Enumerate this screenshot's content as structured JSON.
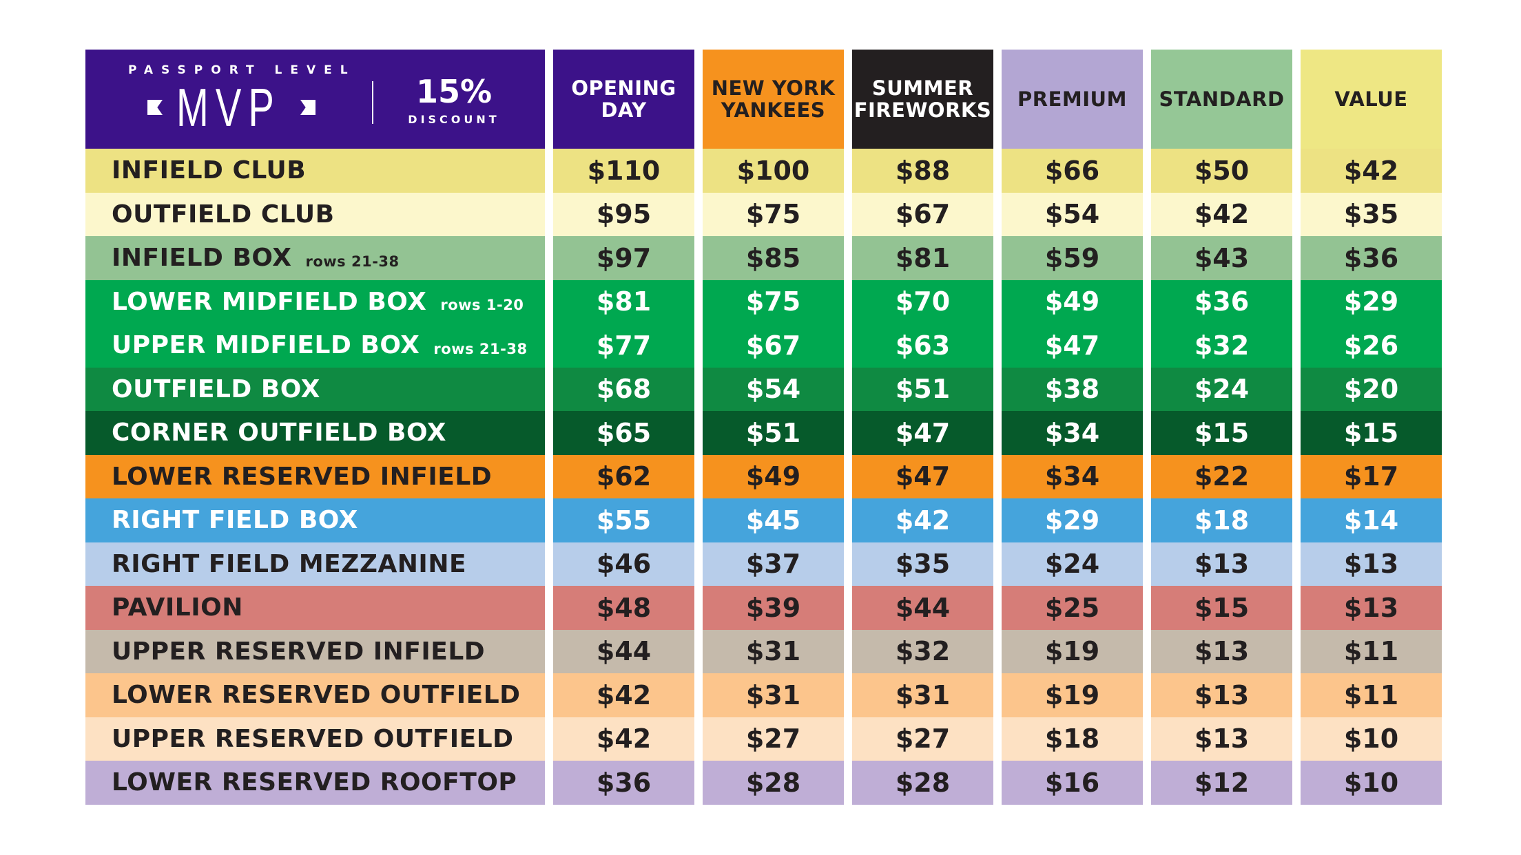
{
  "header": {
    "kicker": "PASSPORT LEVEL",
    "title": "MVP",
    "discount_pct": "15%",
    "discount_label": "DISCOUNT"
  },
  "columns": [
    {
      "label": "OPENING\nDAY",
      "bg": "#3c1289",
      "fg": "#ffffff"
    },
    {
      "label": "NEW YORK\nYANKEES",
      "bg": "#f6921e",
      "fg": "#231f20"
    },
    {
      "label": "SUMMER\nFIREWORKS",
      "bg": "#231f20",
      "fg": "#ffffff"
    },
    {
      "label": "PREMIUM",
      "bg": "#b3a6d3",
      "fg": "#231f20"
    },
    {
      "label": "STANDARD",
      "bg": "#95c796",
      "fg": "#231f20"
    },
    {
      "label": "VALUE",
      "bg": "#eee784",
      "fg": "#231f20"
    }
  ],
  "rows": [
    {
      "name": "INFIELD CLUB",
      "note": "",
      "bg": "#ede283",
      "fg": "#231f20",
      "prices": [
        "$110",
        "$100",
        "$88",
        "$66",
        "$50",
        "$42"
      ]
    },
    {
      "name": "OUTFIELD CLUB",
      "note": "",
      "bg": "#fcf7cc",
      "fg": "#231f20",
      "prices": [
        "$95",
        "$75",
        "$67",
        "$54",
        "$42",
        "$35"
      ]
    },
    {
      "name": "INFIELD BOX",
      "note": "rows 21-38",
      "bg": "#93c393",
      "fg": "#231f20",
      "prices": [
        "$97",
        "$85",
        "$81",
        "$59",
        "$43",
        "$36"
      ]
    },
    {
      "name": "LOWER MIDFIELD BOX",
      "note": "rows 1-20",
      "bg": "#00a850",
      "fg": "#ffffff",
      "prices": [
        "$81",
        "$75",
        "$70",
        "$49",
        "$36",
        "$29"
      ]
    },
    {
      "name": "UPPER MIDFIELD BOX",
      "note": "rows 21-38",
      "bg": "#00a850",
      "fg": "#ffffff",
      "prices": [
        "$77",
        "$67",
        "$63",
        "$47",
        "$32",
        "$26"
      ]
    },
    {
      "name": "OUTFIELD BOX",
      "note": "",
      "bg": "#0f8a42",
      "fg": "#ffffff",
      "prices": [
        "$68",
        "$54",
        "$51",
        "$38",
        "$24",
        "$20"
      ]
    },
    {
      "name": "CORNER OUTFIELD BOX",
      "note": "",
      "bg": "#065a2b",
      "fg": "#ffffff",
      "prices": [
        "$65",
        "$51",
        "$47",
        "$34",
        "$15",
        "$15"
      ]
    },
    {
      "name": "LOWER RESERVED INFIELD",
      "note": "",
      "bg": "#f6921e",
      "fg": "#231f20",
      "prices": [
        "$62",
        "$49",
        "$47",
        "$34",
        "$22",
        "$17"
      ]
    },
    {
      "name": "RIGHT FIELD BOX",
      "note": "",
      "bg": "#45a4dc",
      "fg": "#ffffff",
      "prices": [
        "$55",
        "$45",
        "$42",
        "$29",
        "$18",
        "$14"
      ]
    },
    {
      "name": "RIGHT FIELD MEZZANINE",
      "note": "",
      "bg": "#b7cdea",
      "fg": "#231f20",
      "prices": [
        "$46",
        "$37",
        "$35",
        "$24",
        "$13",
        "$13"
      ]
    },
    {
      "name": "PAVILION",
      "note": "",
      "bg": "#d67d78",
      "fg": "#231f20",
      "prices": [
        "$48",
        "$39",
        "$44",
        "$25",
        "$15",
        "$13"
      ]
    },
    {
      "name": "UPPER RESERVED INFIELD",
      "note": "",
      "bg": "#c5baab",
      "fg": "#231f20",
      "prices": [
        "$44",
        "$31",
        "$32",
        "$19",
        "$13",
        "$11"
      ]
    },
    {
      "name": "LOWER RESERVED OUTFIELD",
      "note": "",
      "bg": "#fcc58c",
      "fg": "#231f20",
      "prices": [
        "$42",
        "$31",
        "$31",
        "$19",
        "$13",
        "$11"
      ]
    },
    {
      "name": "UPPER RESERVED OUTFIELD",
      "note": "",
      "bg": "#fde1c3",
      "fg": "#231f20",
      "prices": [
        "$42",
        "$27",
        "$27",
        "$18",
        "$13",
        "$10"
      ]
    },
    {
      "name": "LOWER RESERVED ROOFTOP",
      "note": "",
      "bg": "#bfaed6",
      "fg": "#231f20",
      "prices": [
        "$36",
        "$28",
        "$28",
        "$16",
        "$12",
        "$10"
      ]
    }
  ]
}
